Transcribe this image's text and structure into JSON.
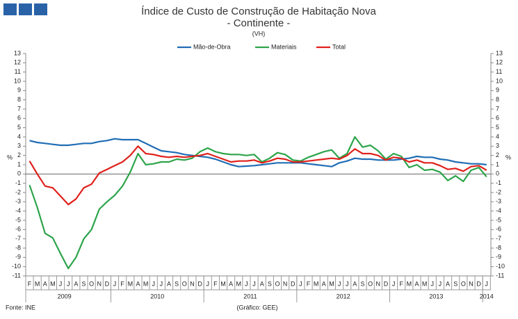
{
  "chart_data": {
    "type": "line",
    "title": "Índice de Custo de Construção de Habitação Nova",
    "subtitle": "- Continente -",
    "unit_note": "(VH)",
    "y_label": "%",
    "y2_label": "%",
    "source": "Fonte: INE",
    "credit": "(Gráfico: GEE)",
    "categories": [
      "F",
      "M",
      "A",
      "M",
      "J",
      "J",
      "A",
      "S",
      "O",
      "N",
      "D",
      "J",
      "F",
      "M",
      "A",
      "M",
      "J",
      "J",
      "A",
      "S",
      "O",
      "N",
      "D",
      "J",
      "F",
      "M",
      "A",
      "M",
      "J",
      "J",
      "A",
      "S",
      "O",
      "N",
      "D",
      "J",
      "F",
      "M",
      "A",
      "M",
      "J",
      "J",
      "A",
      "S",
      "O",
      "N",
      "D",
      "J",
      "F",
      "M",
      "A",
      "M",
      "J",
      "J",
      "A",
      "S",
      "O",
      "N",
      "D",
      "J"
    ],
    "years": [
      "2009",
      "2010",
      "2011",
      "2012",
      "2013",
      "2014"
    ],
    "series": [
      {
        "name": "Mão-de-Obra",
        "color": "#1f6db5",
        "values": [
          3.6,
          3.4,
          3.3,
          3.2,
          3.1,
          3.1,
          3.2,
          3.3,
          3.3,
          3.5,
          3.6,
          3.8,
          3.7,
          3.7,
          3.7,
          3.3,
          2.9,
          2.5,
          2.4,
          2.3,
          2.1,
          2.0,
          1.9,
          1.8,
          1.6,
          1.3,
          1.0,
          0.8,
          0.85,
          0.9,
          1.0,
          1.1,
          1.2,
          1.2,
          1.2,
          1.2,
          1.1,
          1.0,
          0.9,
          0.8,
          1.2,
          1.4,
          1.7,
          1.6,
          1.6,
          1.5,
          1.5,
          1.5,
          1.6,
          1.7,
          1.9,
          1.8,
          1.8,
          1.6,
          1.5,
          1.3,
          1.2,
          1.1,
          1.1,
          1.0
        ]
      },
      {
        "name": "Materiais",
        "color": "#2ca44a",
        "values": [
          -1.2,
          -3.6,
          -6.4,
          -6.9,
          -8.6,
          -10.2,
          -9.0,
          -7.0,
          -6.0,
          -3.8,
          -3.0,
          -2.3,
          -1.3,
          0.2,
          2.2,
          1.0,
          1.1,
          1.3,
          1.3,
          1.6,
          1.5,
          1.7,
          2.4,
          2.8,
          2.4,
          2.2,
          2.1,
          2.1,
          2.0,
          2.1,
          1.3,
          1.7,
          2.3,
          2.1,
          1.5,
          1.4,
          1.8,
          2.1,
          2.4,
          2.6,
          1.7,
          2.2,
          4.0,
          2.9,
          3.1,
          2.5,
          1.6,
          2.2,
          1.9,
          0.7,
          1.0,
          0.4,
          0.5,
          0.2,
          -0.7,
          -0.2,
          -0.8,
          0.4,
          0.7,
          -0.3
        ]
      },
      {
        "name": "Total",
        "color": "#e0201b",
        "values": [
          1.4,
          0.0,
          -1.3,
          -1.5,
          -2.4,
          -3.3,
          -2.7,
          -1.5,
          -1.1,
          0.1,
          0.5,
          0.9,
          1.3,
          2.0,
          3.0,
          2.2,
          2.1,
          1.9,
          1.8,
          1.9,
          1.8,
          1.9,
          2.0,
          2.2,
          1.9,
          1.6,
          1.3,
          1.4,
          1.4,
          1.5,
          1.2,
          1.4,
          1.7,
          1.6,
          1.3,
          1.3,
          1.4,
          1.5,
          1.6,
          1.7,
          1.6,
          2.0,
          2.7,
          2.2,
          2.2,
          2.0,
          1.5,
          1.8,
          1.7,
          1.3,
          1.5,
          1.2,
          1.2,
          0.9,
          0.5,
          0.6,
          0.3,
          0.8,
          0.9,
          0.4
        ]
      }
    ],
    "ylim": [
      -11,
      13
    ],
    "yticks": [
      -11,
      -10,
      -9,
      -8,
      -7,
      -6,
      -5,
      -4,
      -3,
      -2,
      -1,
      0,
      1,
      2,
      3,
      4,
      5,
      6,
      7,
      8,
      9,
      10,
      11,
      12,
      13
    ],
    "y2lim": [
      -11,
      13
    ],
    "y2ticks": [
      -11,
      -10,
      -9,
      -8,
      -7,
      -6,
      -5,
      -4,
      -3,
      -2,
      -1,
      0,
      1,
      2,
      3,
      4,
      5,
      6,
      7,
      8,
      9,
      10,
      11,
      12,
      13
    ],
    "legend": "top"
  }
}
